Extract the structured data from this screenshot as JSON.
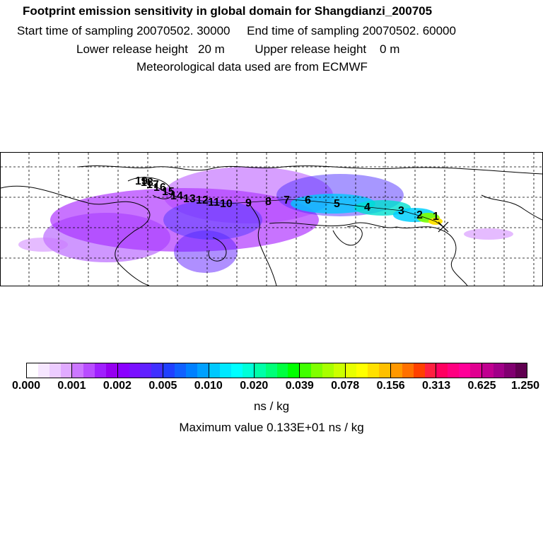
{
  "header": {
    "title": "Footprint emission sensitivity in global domain for Shangdianzi_200705",
    "start_label": "Start time of sampling",
    "start_value": "20070502. 30000",
    "end_label": "End time of sampling",
    "end_value": "20070502. 60000",
    "lower_label": "Lower release height",
    "lower_value": "20 m",
    "upper_label": "Upper release height",
    "upper_value": "0 m",
    "met_text": "Meteorological data used are from ECMWF"
  },
  "map": {
    "trajectory_labels": [
      "1",
      "2",
      "3",
      "4",
      "5",
      "6",
      "7",
      "8",
      "9",
      "10",
      "11",
      "12",
      "13",
      "14",
      "15",
      "16",
      "17",
      "18",
      "19"
    ],
    "station_marker": "x-marker"
  },
  "colorbar": {
    "ticks": [
      "0.000",
      "0.001",
      "0.002",
      "0.005",
      "0.010",
      "0.020",
      "0.039",
      "0.078",
      "0.156",
      "0.313",
      "0.625",
      "1.250"
    ],
    "colors": [
      "#ffffff",
      "#f6e6ff",
      "#ecccff",
      "#e0aaff",
      "#cc77ff",
      "#b84dff",
      "#a020ff",
      "#9600f0",
      "#8a00ff",
      "#7a10ff",
      "#6020ff",
      "#4030ff",
      "#2040ff",
      "#1060ff",
      "#0080ff",
      "#00a0ff",
      "#00c8ff",
      "#00e8ff",
      "#00ffff",
      "#00ffd8",
      "#00ffa8",
      "#00ff78",
      "#00ff40",
      "#00ff00",
      "#40ff00",
      "#80ff00",
      "#a8ff00",
      "#ccff00",
      "#e8ff00",
      "#ffff00",
      "#ffe000",
      "#ffc000",
      "#ff9800",
      "#ff7000",
      "#ff4000",
      "#ff2040",
      "#ff0060",
      "#ff0080",
      "#ff0098",
      "#e00090",
      "#c00090",
      "#a00088",
      "#800070",
      "#600050"
    ],
    "unit": "ns / kg",
    "max_label": "Maximum value",
    "max_value": "0.133E+01 ns / kg"
  }
}
